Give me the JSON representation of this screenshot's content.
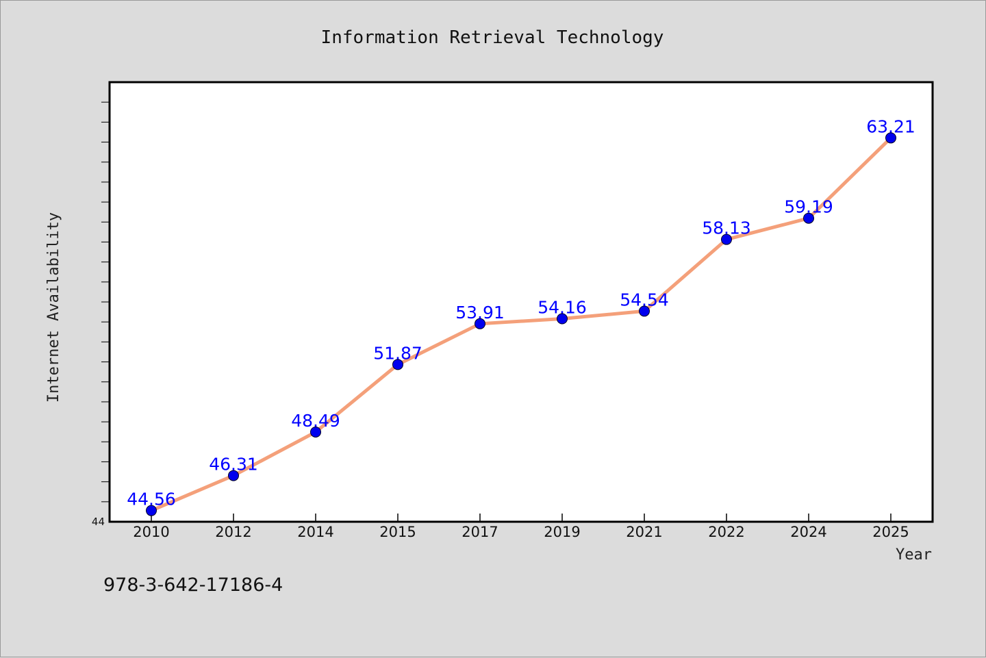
{
  "chart_data": {
    "type": "line",
    "title": "Information Retrieval Technology",
    "xlabel": "Year",
    "ylabel": "Internet Availability",
    "categories": [
      "2010",
      "2012",
      "2014",
      "2015",
      "2017",
      "2019",
      "2021",
      "2022",
      "2024",
      "2025"
    ],
    "series": [
      {
        "values": [
          44.56,
          46.31,
          48.49,
          51.87,
          53.91,
          54.16,
          54.54,
          58.13,
          59.19,
          63.21
        ],
        "line_color": "#f4a07a",
        "marker_color": "#0000ee"
      }
    ],
    "data_labels": [
      "44.56",
      "46.31",
      "48.49",
      "51.87",
      "53.91",
      "54.16",
      "54.54",
      "58.13",
      "59.19",
      "63.21"
    ],
    "y_tick_label": "44",
    "ylim": [
      44,
      66
    ],
    "grid": false,
    "legend": "none"
  },
  "footer": {
    "isbn": "978-3-642-17186-4"
  }
}
